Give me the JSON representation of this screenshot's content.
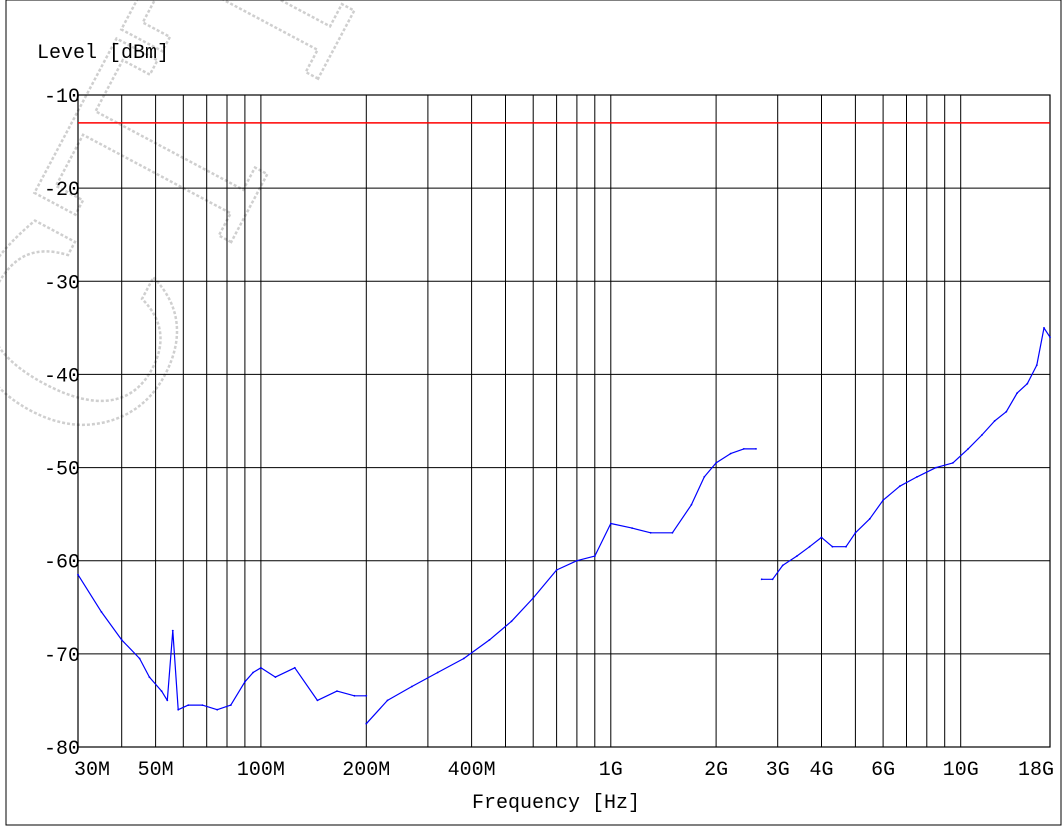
{
  "chart_data": {
    "type": "line",
    "title": "",
    "ylabel": "Level [dBm]",
    "xlabel": "Frequency [Hz]",
    "xscale": "log",
    "xlim": [
      30000000,
      18000000000
    ],
    "ylim": [
      -80,
      -10
    ],
    "grid": true,
    "y_ticks": [
      {
        "value": -10,
        "label": "-10"
      },
      {
        "value": -20,
        "label": "-20"
      },
      {
        "value": -30,
        "label": "-30"
      },
      {
        "value": -40,
        "label": "-40"
      },
      {
        "value": -50,
        "label": "-50"
      },
      {
        "value": -60,
        "label": "-60"
      },
      {
        "value": -70,
        "label": "-70"
      },
      {
        "value": -80,
        "label": "-80"
      }
    ],
    "x_ticks": [
      {
        "value": 30000000,
        "label": "30M"
      },
      {
        "value": 50000000,
        "label": "50M"
      },
      {
        "value": 100000000,
        "label": "100M"
      },
      {
        "value": 200000000,
        "label": "200M"
      },
      {
        "value": 400000000,
        "label": "400M"
      },
      {
        "value": 1000000000,
        "label": "1G"
      },
      {
        "value": 2000000000,
        "label": "2G"
      },
      {
        "value": 3000000000,
        "label": "3G"
      },
      {
        "value": 4000000000,
        "label": "4G"
      },
      {
        "value": 6000000000,
        "label": "6G"
      },
      {
        "value": 10000000000,
        "label": "10G"
      },
      {
        "value": 18000000000,
        "label": "18G"
      }
    ],
    "x_gridlines": [
      30000000,
      40000000,
      50000000,
      60000000,
      70000000,
      80000000,
      90000000,
      100000000,
      200000000,
      300000000,
      400000000,
      500000000,
      600000000,
      700000000,
      800000000,
      900000000,
      1000000000,
      2000000000,
      3000000000,
      4000000000,
      5000000000,
      6000000000,
      7000000000,
      8000000000,
      9000000000,
      10000000000
    ],
    "limit_line": {
      "value": -13,
      "color": "#ff0000"
    },
    "series": [
      {
        "color": "#0000ff",
        "x": [
          30000000,
          35000000,
          40000000,
          45000000,
          48000000,
          52000000,
          54000000,
          56000000,
          58000000,
          62000000,
          68000000,
          75000000,
          82000000,
          90000000,
          95000000,
          100000000,
          110000000,
          125000000,
          145000000,
          165000000,
          185000000,
          200000000
        ],
        "y": [
          -61.5,
          -65.5,
          -68.5,
          -70.5,
          -72.5,
          -74.0,
          -75.0,
          -67.5,
          -76.0,
          -75.5,
          -75.5,
          -76.0,
          -75.5,
          -73.0,
          -72.0,
          -71.5,
          -72.5,
          -71.5,
          -75.0,
          -74.0,
          -74.5,
          -74.5
        ]
      },
      {
        "color": "#0000ff",
        "x": [
          200000000,
          230000000,
          270000000,
          320000000,
          380000000,
          450000000,
          520000000,
          600000000,
          700000000,
          800000000,
          900000000,
          1000000000,
          1150000000,
          1300000000,
          1500000000,
          1700000000,
          1850000000,
          2000000000,
          2200000000,
          2400000000,
          2600000000
        ],
        "y": [
          -77.5,
          -75.0,
          -73.5,
          -72.0,
          -70.5,
          -68.5,
          -66.5,
          -64.0,
          -61.0,
          -60.0,
          -59.5,
          -56.0,
          -56.5,
          -57.0,
          -57.0,
          -54.0,
          -51.0,
          -49.5,
          -48.5,
          -48.0,
          -48.0
        ]
      },
      {
        "color": "#0000ff",
        "x": [
          2700000000,
          2900000000,
          3100000000,
          3400000000,
          3700000000,
          4000000000,
          4300000000,
          4700000000,
          5000000000,
          5500000000,
          6000000000,
          6700000000,
          7500000000,
          8500000000,
          9500000000,
          10500000000,
          11500000000,
          12500000000,
          13500000000,
          14500000000,
          15500000000,
          16500000000,
          17300000000,
          18000000000
        ],
        "y": [
          -62.0,
          -62.0,
          -60.5,
          -59.5,
          -58.5,
          -57.5,
          -58.5,
          -58.5,
          -57.0,
          -55.5,
          -53.5,
          -52.0,
          -51.0,
          -50.0,
          -49.5,
          -48.0,
          -46.5,
          -45.0,
          -44.0,
          -42.0,
          -41.0,
          -39.0,
          -35.0,
          -36.0
        ]
      }
    ]
  }
}
